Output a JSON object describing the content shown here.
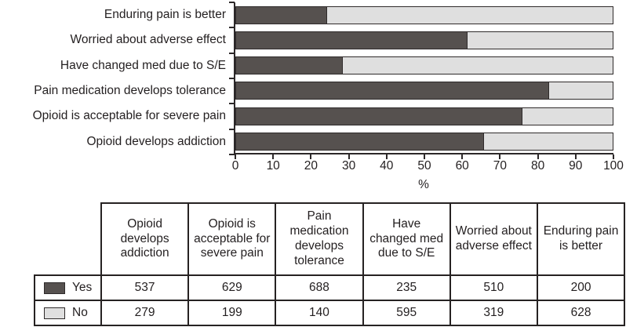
{
  "colors": {
    "yes_fill": "#56514f",
    "no_fill": "#dfdfdf",
    "outline": "#2f2b2b",
    "axis": "#2c2829",
    "text": "#231f20"
  },
  "chart_data": {
    "type": "bar",
    "variant": "horizontal-stacked-100pct",
    "title": "",
    "xlabel": "%",
    "xlim": [
      0,
      100
    ],
    "x_ticks": [
      0,
      10,
      20,
      30,
      40,
      50,
      60,
      70,
      80,
      90,
      100
    ],
    "grid": false,
    "legend_position": "in-table-below",
    "categories_top_to_bottom": [
      "Enduring pain is better",
      "Worried about adverse effect",
      "Have changed med due to S/E",
      "Pain medication develops tolerance",
      "Opioid is acceptable for severe pain",
      "Opioid develops addiction"
    ],
    "series": [
      {
        "name": "Yes",
        "color": "#56514f",
        "counts_top_to_bottom": [
          200,
          510,
          235,
          688,
          629,
          537
        ]
      },
      {
        "name": "No",
        "color": "#dfdfdf",
        "counts_top_to_bottom": [
          628,
          319,
          595,
          140,
          199,
          279
        ]
      }
    ],
    "percent_yes_top_to_bottom": [
      24.2,
      61.5,
      28.3,
      83.1,
      76.0,
      65.8
    ]
  },
  "table": {
    "columns": [
      "Opioid develops addiction",
      "Opioid is acceptable for severe pain",
      "Pain medication develops tolerance",
      "Have changed med due to S/E",
      "Worried about adverse effect",
      "Enduring pain is better"
    ],
    "rows": [
      {
        "label": "Yes",
        "swatch_color": "#56514f",
        "values": [
          537,
          629,
          688,
          235,
          510,
          200
        ]
      },
      {
        "label": "No",
        "swatch_color": "#dfdfdf",
        "values": [
          279,
          199,
          140,
          595,
          319,
          628
        ]
      }
    ]
  }
}
